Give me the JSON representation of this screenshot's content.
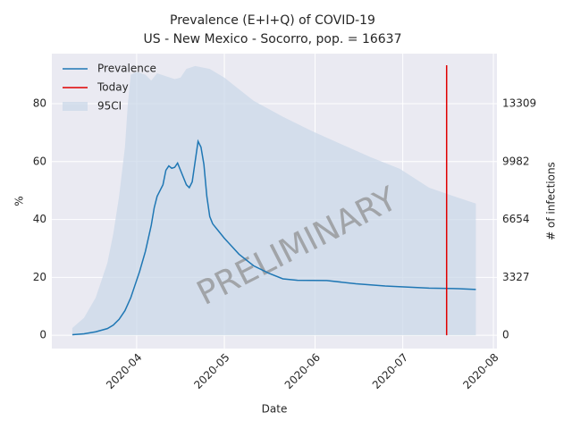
{
  "chart_data": {
    "type": "line",
    "title": "Prevalence (E+I+Q) of COVID-19",
    "subtitle": "US - New Mexico - Socorro, pop. = 16637",
    "x_label": "Date",
    "y_label": "%",
    "y2_label": "# of infections",
    "watermark": "PRELIMINARY",
    "xlim": [
      -29,
      123.2
    ],
    "xticks": [
      {
        "value": 0,
        "label": "2020-04"
      },
      {
        "value": 30,
        "label": "2020-05"
      },
      {
        "value": 61,
        "label": "2020-06"
      },
      {
        "value": 91,
        "label": "2020-07"
      },
      {
        "value": 122,
        "label": "2020-08"
      }
    ],
    "ylim": [
      -4.6,
      97.3
    ],
    "yticks": [
      0,
      20,
      40,
      60,
      80
    ],
    "y2lim": [
      -765,
      16188
    ],
    "y2ticks": [
      0,
      3327,
      6654,
      9982,
      13309
    ],
    "grid": true,
    "legend": "upper left",
    "series": [
      {
        "name": "Prevalence",
        "color": "#1f77b4",
        "x": [
          -22,
          -18,
          -14,
          -10,
          -8,
          -6,
          -4,
          -2,
          0,
          1,
          3,
          5,
          6,
          7,
          8,
          9,
          10,
          11,
          12,
          13,
          14,
          15,
          17,
          18,
          19,
          21,
          22,
          23,
          24,
          25,
          26,
          28,
          30,
          35,
          40,
          45,
          50,
          55,
          65,
          75,
          85,
          100,
          110,
          116
        ],
        "values": [
          0.2,
          0.5,
          1.2,
          2.3,
          3.5,
          5.5,
          8.5,
          13,
          19,
          22,
          29,
          38,
          44,
          48,
          50,
          52,
          57,
          58.5,
          57.7,
          58,
          59.5,
          57,
          52,
          51,
          53,
          67,
          65,
          59,
          48,
          41,
          38.5,
          36,
          33.5,
          28,
          24,
          21.5,
          19.5,
          19,
          18.9,
          17.8,
          17,
          16.3,
          16.1,
          15.8
        ]
      },
      {
        "name": "Today",
        "color": "#e00000",
        "x": [
          106,
          106
        ],
        "values": [
          0,
          93.3
        ]
      }
    ],
    "band": {
      "name": "95CI",
      "color": "#c9d7e8",
      "x": [
        -22,
        -18,
        -14,
        -10,
        -8,
        -6,
        -4,
        -3,
        -2,
        0,
        3,
        5,
        7,
        10,
        13,
        15,
        17,
        20,
        25,
        30,
        35,
        40,
        50,
        60,
        70,
        80,
        90,
        100,
        110,
        116
      ],
      "upper": [
        2.5,
        6,
        13,
        25,
        35,
        48,
        65,
        80,
        90,
        91,
        90,
        88,
        90.5,
        89.5,
        88.5,
        89,
        92,
        93,
        92,
        89,
        85,
        81,
        75.5,
        70.5,
        66,
        61.5,
        57.5,
        51,
        47.5,
        45.5
      ],
      "lower": [
        0,
        0,
        0,
        0,
        0,
        0,
        0,
        0,
        0,
        0,
        0,
        0,
        0,
        0,
        0,
        0,
        0,
        0,
        0,
        0,
        0,
        0,
        0,
        0,
        0,
        0,
        0,
        0,
        0,
        0
      ]
    }
  }
}
